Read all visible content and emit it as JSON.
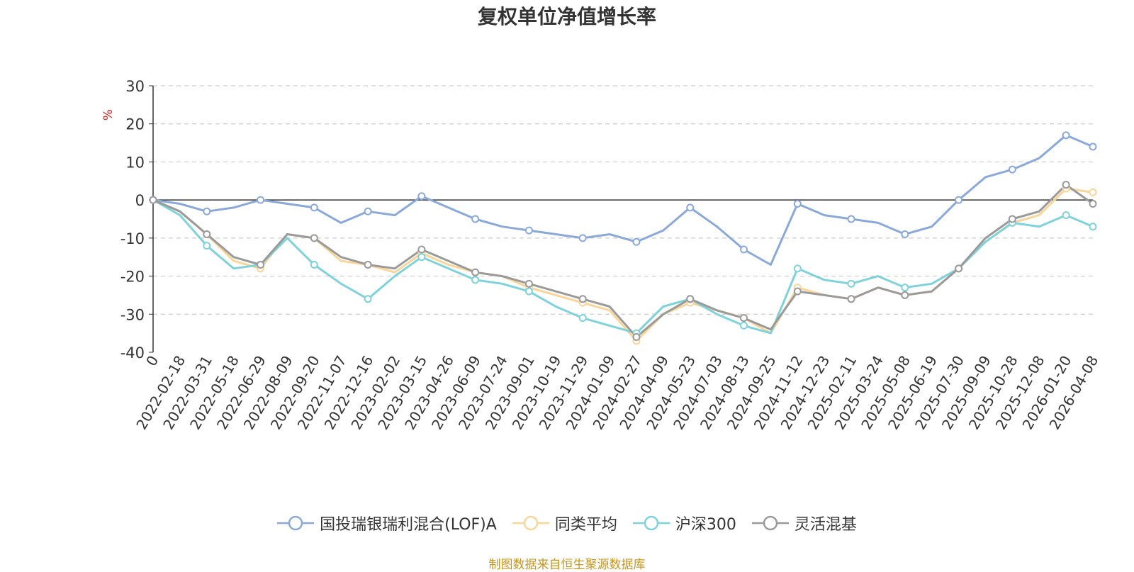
{
  "chart_data": {
    "type": "line",
    "title": "复权单位净值增长率",
    "ylabel": "%",
    "xlabel": "",
    "ylim": [
      -40,
      30
    ],
    "yticks": [
      30,
      20,
      10,
      0,
      -10,
      -20,
      -30,
      -40
    ],
    "categories": [
      "0",
      "2022-02-18",
      "2022-03-31",
      "2022-05-18",
      "2022-06-29",
      "2022-08-09",
      "2022-09-20",
      "2022-11-07",
      "2022-12-16",
      "2023-02-02",
      "2023-03-15",
      "2023-04-26",
      "2023-06-09",
      "2023-07-24",
      "2023-09-01",
      "2023-10-19",
      "2023-11-29",
      "2024-01-09",
      "2024-02-27",
      "2024-04-09",
      "2024-05-23",
      "2024-07-03",
      "2024-08-13",
      "2024-09-25",
      "2024-11-12",
      "2024-12-23",
      "2025-02-11",
      "2025-03-24",
      "2025-05-08",
      "2025-06-19",
      "2025-07-30",
      "2025-09-09",
      "2025-10-28",
      "2025-12-08",
      "2026-01-20",
      "2026-04-08"
    ],
    "series": [
      {
        "name": "国投瑞银瑞利混合(LOF)A",
        "color": "#8aa8d8",
        "values": [
          0,
          -1,
          -3,
          -2,
          0,
          -1,
          -2,
          -6,
          -3,
          -4,
          1,
          -2,
          -5,
          -7,
          -8,
          -9,
          -10,
          -9,
          -11,
          -8,
          -2,
          -7,
          -13,
          -17,
          -1,
          -4,
          -5,
          -6,
          -9,
          -7,
          0,
          6,
          8,
          11,
          17,
          14
        ]
      },
      {
        "name": "同类平均",
        "color": "#f8d598",
        "values": [
          0,
          -3,
          -9,
          -16,
          -18,
          -9,
          -10,
          -16,
          -17,
          -19,
          -14,
          -17,
          -19,
          -20,
          -23,
          -25,
          -27,
          -29,
          -37,
          -30,
          -27,
          -29,
          -31,
          -35,
          -23,
          -25,
          -26,
          -23,
          -25,
          -24,
          -18,
          -11,
          -6,
          -4,
          3,
          2
        ]
      },
      {
        "name": "沪深300",
        "color": "#7fd2da",
        "values": [
          0,
          -4,
          -12,
          -18,
          -17,
          -10,
          -17,
          -22,
          -26,
          -20,
          -15,
          -18,
          -21,
          -22,
          -24,
          -28,
          -31,
          -33,
          -35,
          -28,
          -26,
          -30,
          -33,
          -35,
          -18,
          -21,
          -22,
          -20,
          -23,
          -22,
          -18,
          -11,
          -6,
          -7,
          -4,
          -7
        ]
      },
      {
        "name": "灵活混基",
        "color": "#9a9a9a",
        "values": [
          0,
          -3,
          -9,
          -15,
          -17,
          -9,
          -10,
          -15,
          -17,
          -18,
          -13,
          -16,
          -19,
          -20,
          -22,
          -24,
          -26,
          -28,
          -36,
          -30,
          -26,
          -29,
          -31,
          -34,
          -24,
          -25,
          -26,
          -23,
          -25,
          -24,
          -18,
          -10,
          -5,
          -3,
          4,
          -1
        ]
      }
    ]
  },
  "footer": "制图数据来自恒生聚源数据库"
}
